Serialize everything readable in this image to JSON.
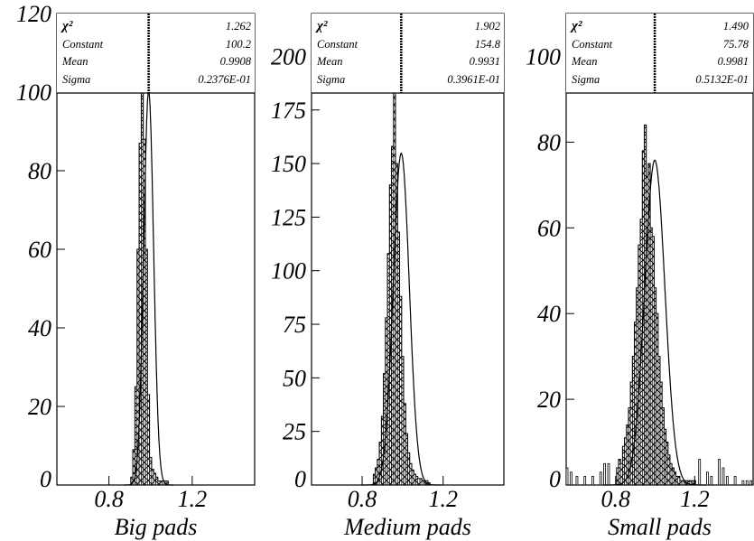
{
  "chart_data": [
    {
      "type": "bar",
      "xlabel": "Big pads",
      "ylim": [
        0,
        120
      ],
      "xlim": [
        0.55,
        1.5
      ],
      "yticks": [
        0,
        20,
        40,
        60,
        80,
        100,
        120
      ],
      "ytick_labels": [
        "0",
        "20",
        "40",
        "60",
        "80",
        "100",
        "120"
      ],
      "xticks": [
        0.8,
        1.2
      ],
      "xtick_labels": [
        "0.8",
        "1.2"
      ],
      "fit": {
        "type": "gaussian",
        "constant": 100.2,
        "mean": 0.9908,
        "sigma": 0.02376
      },
      "stats": [
        {
          "label": "χ²",
          "value": "1.262"
        },
        {
          "label": "Constant",
          "value": "100.2"
        },
        {
          "label": "Mean",
          "value": "0.9908"
        },
        {
          "label": "Sigma",
          "value": "0.2376E-01"
        }
      ],
      "bins": {
        "x_start": 0.905,
        "x_end": 1.085,
        "bin_width": 0.01,
        "values": [
          2,
          9,
          25,
          60,
          87,
          107,
          88,
          60,
          23,
          7,
          4,
          3,
          2,
          1,
          1,
          1,
          1,
          1
        ]
      }
    },
    {
      "type": "bar",
      "xlabel": "Medium pads",
      "ylim": [
        0,
        220
      ],
      "xlim": [
        0.55,
        1.5
      ],
      "yticks": [
        0,
        25,
        50,
        75,
        100,
        125,
        150,
        175,
        200
      ],
      "ytick_labels": [
        "0",
        "25",
        "50",
        "75",
        "100",
        "125",
        "150",
        "175",
        "200"
      ],
      "xticks": [
        0.8,
        1.2
      ],
      "xtick_labels": [
        "0.8",
        "1.2"
      ],
      "fit": {
        "type": "gaussian",
        "constant": 154.8,
        "mean": 0.9931,
        "sigma": 0.03961
      },
      "stats": [
        {
          "label": "χ²",
          "value": "1.902"
        },
        {
          "label": "Constant",
          "value": "154.8"
        },
        {
          "label": "Mean",
          "value": "0.9931"
        },
        {
          "label": "Sigma",
          "value": "0.3961E-01"
        }
      ],
      "bins": {
        "x_start": 0.855,
        "x_end": 1.135,
        "bin_width": 0.01,
        "values": [
          5,
          8,
          12,
          20,
          32,
          52,
          78,
          108,
          140,
          158,
          195,
          150,
          118,
          88,
          60,
          38,
          24,
          15,
          10,
          7,
          5,
          4,
          3,
          3,
          2,
          2,
          2,
          1
        ]
      }
    },
    {
      "type": "bar",
      "xlabel": "Small  pads",
      "ylim": [
        0,
        110
      ],
      "xlim": [
        0.55,
        1.5
      ],
      "yticks": [
        0,
        20,
        40,
        60,
        80,
        100
      ],
      "ytick_labels": [
        "0",
        "20",
        "40",
        "60",
        "80",
        "100"
      ],
      "xticks": [
        0.8,
        1.2
      ],
      "xtick_labels": [
        "0.8",
        "1.2"
      ],
      "fit": {
        "type": "gaussian",
        "constant": 75.78,
        "mean": 0.9981,
        "sigma": 0.05132
      },
      "stats": [
        {
          "label": "χ²",
          "value": "1.490"
        },
        {
          "label": "Constant",
          "value": "75.78"
        },
        {
          "label": "Mean",
          "value": "0.9981"
        },
        {
          "label": "Sigma",
          "value": "0.5132E-01"
        }
      ],
      "bins": {
        "x_start": 0.805,
        "x_end": 1.2,
        "bin_width": 0.01,
        "values": [
          4,
          6,
          5,
          9,
          11,
          14,
          18,
          24,
          30,
          38,
          46,
          56,
          62,
          78,
          84,
          72,
          75,
          60,
          58,
          46,
          40,
          30,
          24,
          18,
          13,
          10,
          7,
          5,
          4,
          3,
          2,
          2,
          1,
          1,
          1,
          1,
          1,
          1,
          1,
          1
        ]
      },
      "outliers": [
        {
          "x": 0.55,
          "y": 4
        },
        {
          "x": 0.57,
          "y": 3
        },
        {
          "x": 0.6,
          "y": 2
        },
        {
          "x": 0.64,
          "y": 2
        },
        {
          "x": 0.68,
          "y": 2
        },
        {
          "x": 0.72,
          "y": 3
        },
        {
          "x": 0.74,
          "y": 5
        },
        {
          "x": 0.76,
          "y": 5
        },
        {
          "x": 1.22,
          "y": 6
        },
        {
          "x": 1.26,
          "y": 3
        },
        {
          "x": 1.28,
          "y": 2
        },
        {
          "x": 1.32,
          "y": 6
        },
        {
          "x": 1.34,
          "y": 4
        },
        {
          "x": 1.36,
          "y": 2
        },
        {
          "x": 1.4,
          "y": 2
        },
        {
          "x": 1.44,
          "y": 1
        },
        {
          "x": 1.46,
          "y": 1
        },
        {
          "x": 1.48,
          "y": 1
        }
      ]
    }
  ]
}
